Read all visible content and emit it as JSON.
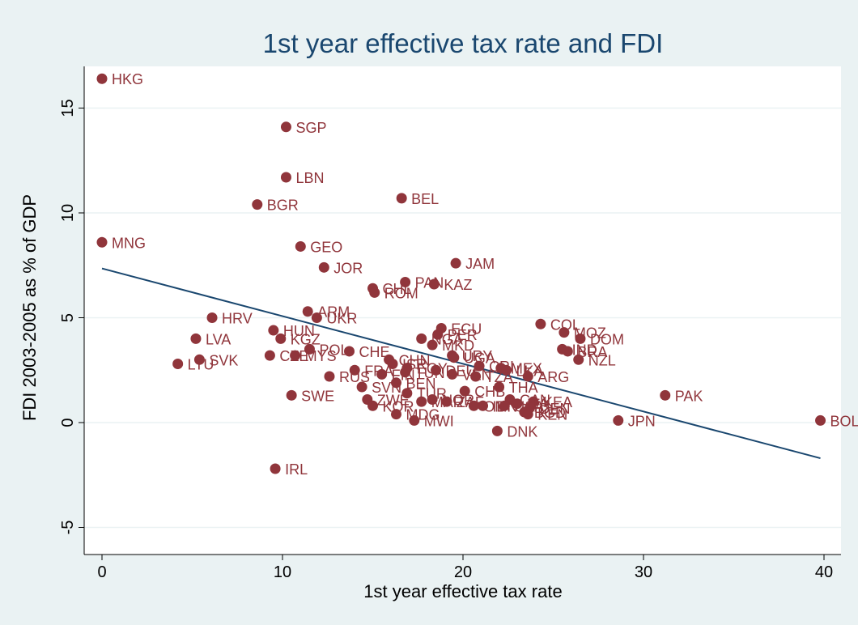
{
  "colors": {
    "outer_bg": "#eaf2f3",
    "plot_bg": "#ffffff",
    "grid": "#eaf2f3",
    "title": "#1a476f",
    "point": "#90353b",
    "label": "#90353b",
    "fit_line": "#1a476f",
    "axis": "#000000"
  },
  "chart_data": {
    "type": "scatter",
    "title": "1st year effective tax rate and FDI",
    "xlabel": "1st year effective tax rate",
    "ylabel": "FDI 2003-2005  as % of GDP",
    "xlim": [
      0,
      40
    ],
    "ylim": [
      -5,
      15
    ],
    "x_ticks": [
      "0",
      "10",
      "20",
      "30",
      "40"
    ],
    "y_ticks": [
      "-5",
      "0",
      "5",
      "10",
      "15"
    ],
    "grid": true,
    "legend": "none",
    "fit_line": {
      "x": [
        0,
        39.8
      ],
      "y": [
        7.35,
        -1.7
      ]
    },
    "points": [
      {
        "label": "HKG",
        "x": 0,
        "y": 16.4
      },
      {
        "label": "SGP",
        "x": 10.2,
        "y": 14.1
      },
      {
        "label": "LBN",
        "x": 10.2,
        "y": 11.7
      },
      {
        "label": "BGR",
        "x": 8.6,
        "y": 10.4
      },
      {
        "label": "BEL",
        "x": 16.6,
        "y": 10.7
      },
      {
        "label": "MNG",
        "x": 0,
        "y": 8.6
      },
      {
        "label": "GEO",
        "x": 11.0,
        "y": 8.4
      },
      {
        "label": "JOR",
        "x": 12.3,
        "y": 7.4
      },
      {
        "label": "JAM",
        "x": 19.6,
        "y": 7.6
      },
      {
        "label": "PAN",
        "x": 16.8,
        "y": 6.7
      },
      {
        "label": "KAZ",
        "x": 18.4,
        "y": 6.6
      },
      {
        "label": "CHL",
        "x": 15.0,
        "y": 6.4
      },
      {
        "label": "ROM",
        "x": 15.1,
        "y": 6.2
      },
      {
        "label": "ARM",
        "x": 11.4,
        "y": 5.3
      },
      {
        "label": "UKR",
        "x": 11.9,
        "y": 5.0
      },
      {
        "label": "HRV",
        "x": 6.1,
        "y": 5.0
      },
      {
        "label": "COL",
        "x": 24.3,
        "y": 4.7
      },
      {
        "label": "ECU",
        "x": 18.8,
        "y": 4.5
      },
      {
        "label": "MOZ",
        "x": 25.6,
        "y": 4.3
      },
      {
        "label": "DOM",
        "x": 26.5,
        "y": 4.0
      },
      {
        "label": "HUN",
        "x": 9.5,
        "y": 4.4
      },
      {
        "label": "LVA",
        "x": 5.2,
        "y": 4.0
      },
      {
        "label": "KGZ",
        "x": 9.9,
        "y": 4.0
      },
      {
        "label": "PER",
        "x": 18.6,
        "y": 4.2
      },
      {
        "label": "MKD",
        "x": 18.3,
        "y": 3.7
      },
      {
        "label": "NGA",
        "x": 17.7,
        "y": 4.0
      },
      {
        "label": "IND",
        "x": 25.5,
        "y": 3.5
      },
      {
        "label": "BRA",
        "x": 25.8,
        "y": 3.4
      },
      {
        "label": "POL",
        "x": 11.5,
        "y": 3.5
      },
      {
        "label": "CHE",
        "x": 13.7,
        "y": 3.4
      },
      {
        "label": "CZE",
        "x": 9.3,
        "y": 3.2
      },
      {
        "label": "MYS",
        "x": 10.7,
        "y": 3.2
      },
      {
        "label": "URY",
        "x": 19.4,
        "y": 3.2
      },
      {
        "label": "UGA",
        "x": 19.5,
        "y": 3.1
      },
      {
        "label": "NZL",
        "x": 26.4,
        "y": 3.0
      },
      {
        "label": "SVK",
        "x": 5.4,
        "y": 3.0
      },
      {
        "label": "LTU",
        "x": 4.2,
        "y": 2.8
      },
      {
        "label": "CHN",
        "x": 15.9,
        "y": 3.0
      },
      {
        "label": "ISR",
        "x": 16.1,
        "y": 2.8
      },
      {
        "label": "EGY",
        "x": 16.9,
        "y": 2.6
      },
      {
        "label": "CRI",
        "x": 20.9,
        "y": 2.7
      },
      {
        "label": "MEX",
        "x": 22.1,
        "y": 2.6
      },
      {
        "label": "LKA",
        "x": 22.4,
        "y": 2.5
      },
      {
        "label": "VEN",
        "x": 19.4,
        "y": 2.3
      },
      {
        "label": "RUS",
        "x": 12.6,
        "y": 2.2
      },
      {
        "label": "ARG",
        "x": 23.6,
        "y": 2.2
      },
      {
        "label": "FRA",
        "x": 14.0,
        "y": 2.5
      },
      {
        "label": "FIN",
        "x": 15.5,
        "y": 2.3
      },
      {
        "label": "TUN",
        "x": 16.8,
        "y": 2.4
      },
      {
        "label": "DEU",
        "x": 18.5,
        "y": 2.5
      },
      {
        "label": "SVN",
        "x": 14.4,
        "y": 1.7
      },
      {
        "label": "BEN",
        "x": 16.3,
        "y": 1.9
      },
      {
        "label": "TZA",
        "x": 20.7,
        "y": 2.2
      },
      {
        "label": "THA",
        "x": 22.0,
        "y": 1.7
      },
      {
        "label": "SWE",
        "x": 10.5,
        "y": 1.3
      },
      {
        "label": "TUR",
        "x": 16.9,
        "y": 1.4
      },
      {
        "label": "CHB",
        "x": 20.1,
        "y": 1.5
      },
      {
        "label": "PAK",
        "x": 31.2,
        "y": 1.3
      },
      {
        "label": "ZWE",
        "x": 14.7,
        "y": 1.1
      },
      {
        "label": "CAN",
        "x": 22.6,
        "y": 1.1
      },
      {
        "label": "KEA",
        "x": 23.9,
        "y": 1.0
      },
      {
        "label": "KOR",
        "x": 15.0,
        "y": 0.8
      },
      {
        "label": "MAR",
        "x": 17.7,
        "y": 1.0
      },
      {
        "label": "NOR",
        "x": 18.3,
        "y": 1.1
      },
      {
        "label": "ZAF",
        "x": 19.1,
        "y": 1.0
      },
      {
        "label": "OMN",
        "x": 20.6,
        "y": 0.8
      },
      {
        "label": "IDN",
        "x": 21.1,
        "y": 0.8
      },
      {
        "label": "USA",
        "x": 22.3,
        "y": 0.8
      },
      {
        "label": "DEN",
        "x": 23.7,
        "y": 0.7
      },
      {
        "label": "ITA",
        "x": 23.0,
        "y": 0.9
      },
      {
        "label": "BGD",
        "x": 23.4,
        "y": 0.5
      },
      {
        "label": "KEN",
        "x": 23.6,
        "y": 0.4
      },
      {
        "label": "MDG",
        "x": 16.3,
        "y": 0.4
      },
      {
        "label": "MWI",
        "x": 17.3,
        "y": 0.1
      },
      {
        "label": "JPN",
        "x": 28.6,
        "y": 0.1
      },
      {
        "label": "BOL",
        "x": 39.8,
        "y": 0.1
      },
      {
        "label": "DNK",
        "x": 21.9,
        "y": -0.4
      },
      {
        "label": "IRL",
        "x": 9.6,
        "y": -2.2
      }
    ]
  }
}
